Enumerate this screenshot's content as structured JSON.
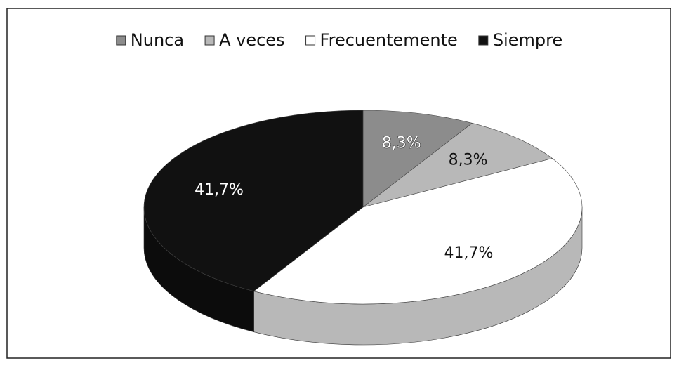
{
  "chart_data": {
    "type": "pie3d",
    "categories": [
      "Nunca",
      "A veces",
      "Frecuentemente",
      "Siempre"
    ],
    "values": [
      8.3,
      8.3,
      41.7,
      41.7
    ],
    "value_labels": [
      "8,3%",
      "8,3%",
      "41,7%",
      "41,7%"
    ],
    "colors": [
      "#8c8c8c",
      "#b8b8b8",
      "#ffffff",
      "#111111"
    ],
    "legend": "top"
  }
}
